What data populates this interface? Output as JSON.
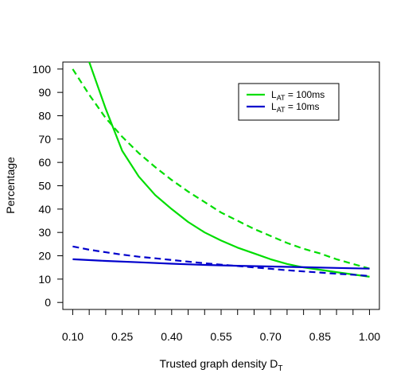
{
  "chart_data": {
    "type": "line",
    "xlabel": "Trusted graph density D",
    "xlabel_sub": "T",
    "ylabel": "Percentage",
    "xlim": [
      0.07,
      1.03
    ],
    "ylim": [
      -3,
      103
    ],
    "x_tick_values": [
      0.1,
      0.15,
      0.2,
      0.25,
      0.3,
      0.35,
      0.4,
      0.45,
      0.5,
      0.55,
      0.6,
      0.65,
      0.7,
      0.75,
      0.8,
      0.85,
      0.9,
      0.95,
      1.0
    ],
    "x_tick_labels": [
      {
        "x": 0.1,
        "label": "0.10"
      },
      {
        "x": 0.25,
        "label": "0.25"
      },
      {
        "x": 0.4,
        "label": "0.40"
      },
      {
        "x": 0.55,
        "label": "0.55"
      },
      {
        "x": 0.7,
        "label": "0.70"
      },
      {
        "x": 0.85,
        "label": "0.85"
      },
      {
        "x": 1.0,
        "label": "1.00"
      }
    ],
    "y_ticks": [
      0,
      10,
      20,
      30,
      40,
      50,
      60,
      70,
      80,
      90,
      100
    ],
    "y_tick_labels": [
      "0",
      "10",
      "20",
      "30",
      "40",
      "50",
      "60",
      "70",
      "80",
      "90",
      "100"
    ],
    "legend": {
      "placement": "top-right",
      "entries": [
        {
          "prefix": "L",
          "sub": "AT",
          "suffix": " = 100ms",
          "color": "#00dd00"
        },
        {
          "prefix": "L",
          "sub": "AT",
          "suffix": " = 10ms",
          "color": "#0000cc"
        }
      ]
    },
    "series": [
      {
        "color": "#00dd00",
        "style": "solid",
        "x": [
          0.1,
          0.15,
          0.2,
          0.25,
          0.3,
          0.35,
          0.4,
          0.45,
          0.5,
          0.55,
          0.6,
          0.65,
          0.7,
          0.75,
          0.8,
          0.85,
          0.9,
          0.95,
          1.0
        ],
        "y": [
          140,
          103,
          83,
          65,
          54,
          46,
          40,
          34.5,
          30,
          26.5,
          23.5,
          21,
          18.5,
          16.5,
          15,
          14,
          13,
          12,
          11
        ]
      },
      {
        "color": "#00dd00",
        "style": "dashed",
        "x": [
          0.1,
          0.15,
          0.2,
          0.25,
          0.3,
          0.35,
          0.4,
          0.45,
          0.5,
          0.55,
          0.6,
          0.65,
          0.7,
          0.75,
          0.8,
          0.85,
          0.9,
          0.95,
          1.0
        ],
        "y": [
          100,
          89,
          79,
          71,
          64,
          58,
          52.5,
          47.5,
          43,
          38.5,
          35,
          31.5,
          28.5,
          25.5,
          23,
          21,
          18.5,
          16.5,
          14.5
        ]
      },
      {
        "color": "#0000cc",
        "style": "solid",
        "x": [
          0.1,
          0.2,
          0.3,
          0.4,
          0.5,
          0.6,
          0.7,
          0.8,
          0.9,
          1.0
        ],
        "y": [
          18.5,
          17.8,
          17.2,
          16.6,
          16.1,
          15.7,
          15.4,
          15.1,
          14.8,
          14.5
        ]
      },
      {
        "color": "#0000cc",
        "style": "dashed",
        "x": [
          0.1,
          0.15,
          0.2,
          0.25,
          0.3,
          0.35,
          0.4,
          0.45,
          0.5,
          0.55,
          0.6,
          0.65,
          0.7,
          0.75,
          0.8,
          0.85,
          0.9,
          0.95,
          1.0
        ],
        "y": [
          24,
          22.6,
          21.5,
          20.5,
          19.6,
          18.9,
          18.2,
          17.5,
          16.8,
          16.2,
          15.6,
          15,
          14.4,
          13.8,
          13.3,
          12.8,
          12.3,
          11.9,
          11.3
        ]
      }
    ]
  }
}
